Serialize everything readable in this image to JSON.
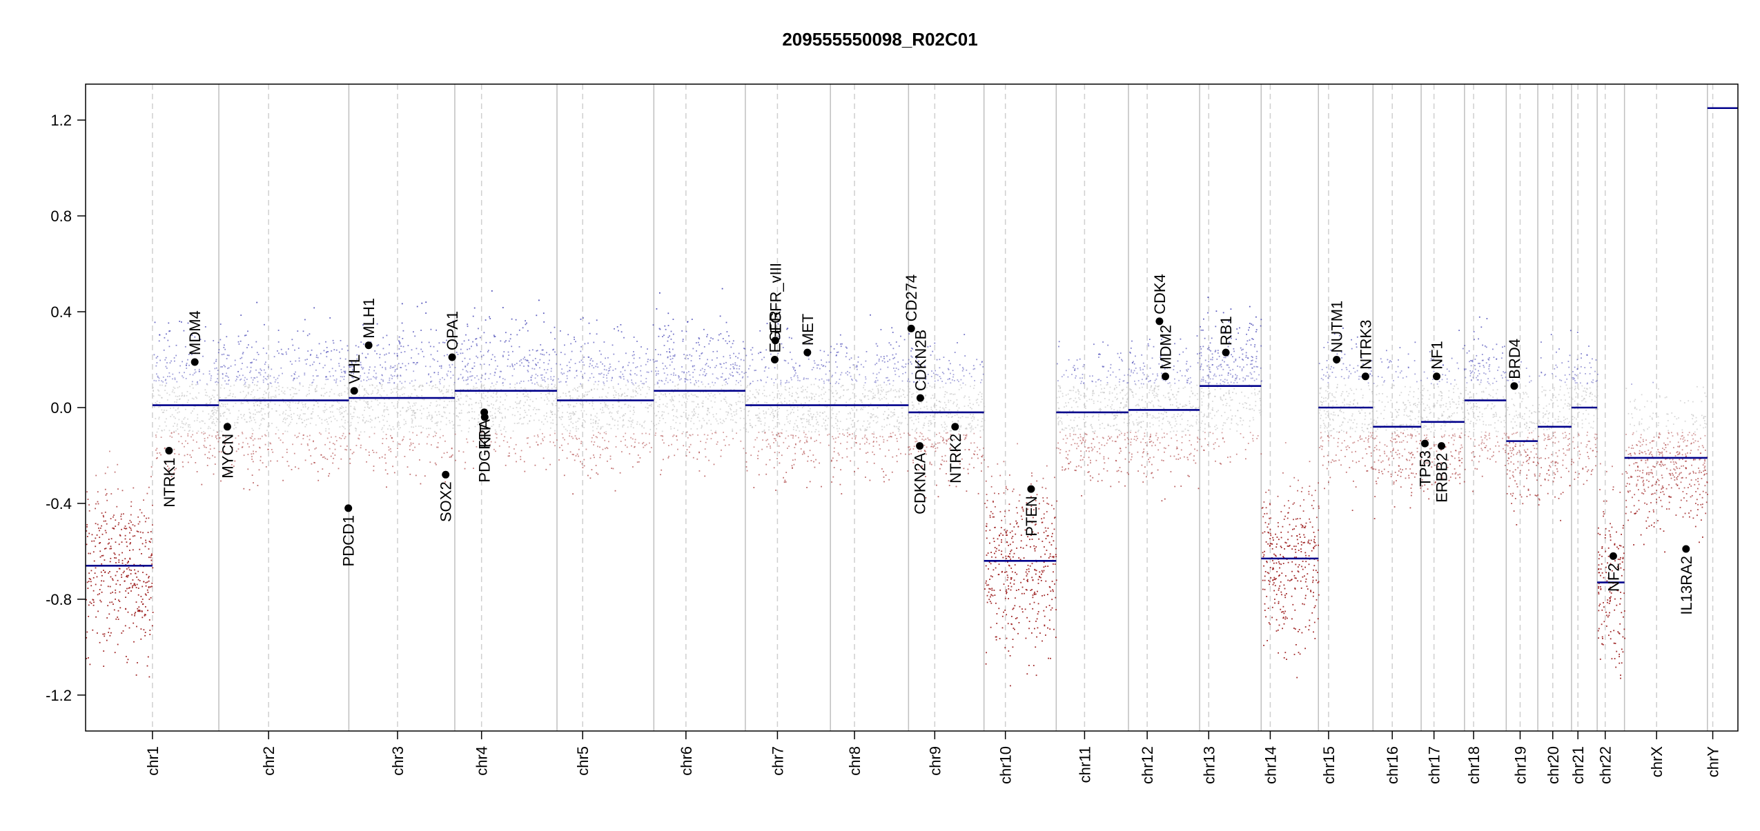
{
  "chart_data": {
    "type": "scatter",
    "title": "209555550098_R02C01",
    "xlabel": "",
    "ylabel": "",
    "ylim": [
      -1.35,
      1.35
    ],
    "y_ticks": [
      -1.2,
      -0.8,
      -0.4,
      0.0,
      0.4,
      0.8,
      1.2
    ],
    "y_tick_labels": [
      "-1.2",
      "-0.8",
      "-0.4",
      "0.0",
      "0.4",
      "0.8",
      "1.2"
    ],
    "grid": false,
    "legend": "none",
    "colors": {
      "gain": "#3a3ab0",
      "loss": "#9b1a1a",
      "neutral": "#b8b8b8",
      "segment": "#00008b",
      "boundary": "#bfbfbf",
      "gene": "#000000"
    },
    "chromosomes": [
      {
        "name": "chr1",
        "length": 249,
        "centromere": 125,
        "segments": [
          {
            "start": 0,
            "end": 125,
            "mean": -0.66
          },
          {
            "start": 125,
            "end": 249,
            "mean": 0.01
          }
        ]
      },
      {
        "name": "chr2",
        "length": 243,
        "centromere": 93,
        "segments": [
          {
            "start": 0,
            "end": 243,
            "mean": 0.03
          }
        ]
      },
      {
        "name": "chr3",
        "length": 198,
        "centromere": 91,
        "segments": [
          {
            "start": 0,
            "end": 198,
            "mean": 0.04
          }
        ]
      },
      {
        "name": "chr4",
        "length": 191,
        "centromere": 50,
        "segments": [
          {
            "start": 0,
            "end": 191,
            "mean": 0.07
          }
        ]
      },
      {
        "name": "chr5",
        "length": 181,
        "centromere": 48,
        "segments": [
          {
            "start": 0,
            "end": 181,
            "mean": 0.03
          }
        ]
      },
      {
        "name": "chr6",
        "length": 171,
        "centromere": 60,
        "segments": [
          {
            "start": 0,
            "end": 171,
            "mean": 0.07
          }
        ]
      },
      {
        "name": "chr7",
        "length": 159,
        "centromere": 60,
        "segments": [
          {
            "start": 0,
            "end": 159,
            "mean": 0.01
          }
        ]
      },
      {
        "name": "chr8",
        "length": 146,
        "centromere": 45,
        "segments": [
          {
            "start": 0,
            "end": 146,
            "mean": 0.01
          }
        ]
      },
      {
        "name": "chr9",
        "length": 141,
        "centromere": 49,
        "segments": [
          {
            "start": 0,
            "end": 141,
            "mean": -0.02
          }
        ]
      },
      {
        "name": "chr10",
        "length": 135,
        "centromere": 40,
        "segments": [
          {
            "start": 0,
            "end": 135,
            "mean": -0.64
          }
        ]
      },
      {
        "name": "chr11",
        "length": 135,
        "centromere": 53,
        "segments": [
          {
            "start": 0,
            "end": 135,
            "mean": -0.02
          }
        ]
      },
      {
        "name": "chr12",
        "length": 133,
        "centromere": 35,
        "segments": [
          {
            "start": 0,
            "end": 133,
            "mean": -0.01
          }
        ]
      },
      {
        "name": "chr13",
        "length": 115,
        "centromere": 17,
        "segments": [
          {
            "start": 0,
            "end": 115,
            "mean": 0.09
          }
        ]
      },
      {
        "name": "chr14",
        "length": 107,
        "centromere": 17,
        "segments": [
          {
            "start": 0,
            "end": 107,
            "mean": -0.63
          }
        ]
      },
      {
        "name": "chr15",
        "length": 102,
        "centromere": 19,
        "segments": [
          {
            "start": 0,
            "end": 102,
            "mean": 0.0
          }
        ]
      },
      {
        "name": "chr16",
        "length": 90,
        "centromere": 36,
        "segments": [
          {
            "start": 0,
            "end": 90,
            "mean": -0.08
          }
        ]
      },
      {
        "name": "chr17",
        "length": 81,
        "centromere": 24,
        "segments": [
          {
            "start": 0,
            "end": 81,
            "mean": -0.06
          }
        ]
      },
      {
        "name": "chr18",
        "length": 78,
        "centromere": 17,
        "segments": [
          {
            "start": 0,
            "end": 78,
            "mean": 0.03
          }
        ]
      },
      {
        "name": "chr19",
        "length": 59,
        "centromere": 26,
        "segments": [
          {
            "start": 0,
            "end": 59,
            "mean": -0.14
          }
        ]
      },
      {
        "name": "chr20",
        "length": 63,
        "centromere": 28,
        "segments": [
          {
            "start": 0,
            "end": 63,
            "mean": -0.08
          }
        ]
      },
      {
        "name": "chr21",
        "length": 48,
        "centromere": 12,
        "segments": [
          {
            "start": 0,
            "end": 48,
            "mean": 0.0
          }
        ]
      },
      {
        "name": "chr22",
        "length": 51,
        "centromere": 15,
        "segments": [
          {
            "start": 0,
            "end": 51,
            "mean": -0.73
          }
        ]
      },
      {
        "name": "chrX",
        "length": 155,
        "centromere": 60,
        "segments": [
          {
            "start": 0,
            "end": 155,
            "mean": -0.21
          }
        ]
      },
      {
        "name": "chrY",
        "length": 57,
        "centromere": 10,
        "segments": [
          {
            "start": 0,
            "end": 57,
            "mean": 1.25
          }
        ]
      }
    ],
    "genes": [
      {
        "name": "NTRK1",
        "chr": "chr1",
        "pos": 156,
        "value": -0.18
      },
      {
        "name": "MDM4",
        "chr": "chr1",
        "pos": 204,
        "value": 0.19
      },
      {
        "name": "MYCN",
        "chr": "chr2",
        "pos": 16,
        "value": -0.08
      },
      {
        "name": "VHL",
        "chr": "chr3",
        "pos": 10,
        "value": 0.07
      },
      {
        "name": "PDCD1",
        "chr": "chr2",
        "pos": 242,
        "value": -0.42
      },
      {
        "name": "MLH1",
        "chr": "chr3",
        "pos": 37,
        "value": 0.26
      },
      {
        "name": "SOX2",
        "chr": "chr3",
        "pos": 181,
        "value": -0.28
      },
      {
        "name": "OPA1",
        "chr": "chr3",
        "pos": 193,
        "value": 0.21
      },
      {
        "name": "PDGFRA",
        "chr": "chr4",
        "pos": 55,
        "value": -0.02
      },
      {
        "name": "KIT",
        "chr": "chr4",
        "pos": 56,
        "value": -0.04
      },
      {
        "name": "EGFR",
        "chr": "chr7",
        "pos": 55,
        "value": 0.2
      },
      {
        "name": "EGFR_vIII",
        "chr": "chr7",
        "pos": 56,
        "value": 0.28
      },
      {
        "name": "MET",
        "chr": "chr7",
        "pos": 116,
        "value": 0.23
      },
      {
        "name": "CD274",
        "chr": "chr9",
        "pos": 5,
        "value": 0.33
      },
      {
        "name": "CDKN2B",
        "chr": "chr9",
        "pos": 22,
        "value": 0.04
      },
      {
        "name": "CDKN2A",
        "chr": "chr9",
        "pos": 21,
        "value": -0.16
      },
      {
        "name": "NTRK2",
        "chr": "chr9",
        "pos": 87,
        "value": -0.08
      },
      {
        "name": "PTEN",
        "chr": "chr10",
        "pos": 88,
        "value": -0.34
      },
      {
        "name": "MDM2",
        "chr": "chr12",
        "pos": 69,
        "value": 0.13
      },
      {
        "name": "CDK4",
        "chr": "chr12",
        "pos": 58,
        "value": 0.36
      },
      {
        "name": "RB1",
        "chr": "chr13",
        "pos": 49,
        "value": 0.23
      },
      {
        "name": "NUTM1",
        "chr": "chr15",
        "pos": 34,
        "value": 0.2
      },
      {
        "name": "NTRK3",
        "chr": "chr15",
        "pos": 88,
        "value": 0.13
      },
      {
        "name": "TP53",
        "chr": "chr17",
        "pos": 7,
        "value": -0.15
      },
      {
        "name": "NF1",
        "chr": "chr17",
        "pos": 29,
        "value": 0.13
      },
      {
        "name": "ERBB2",
        "chr": "chr17",
        "pos": 38,
        "value": -0.16
      },
      {
        "name": "BRD4",
        "chr": "chr19",
        "pos": 15,
        "value": 0.09
      },
      {
        "name": "NF2",
        "chr": "chr22",
        "pos": 30,
        "value": -0.62
      },
      {
        "name": "IL13RA2",
        "chr": "chrX",
        "pos": 115,
        "value": -0.59
      }
    ]
  }
}
